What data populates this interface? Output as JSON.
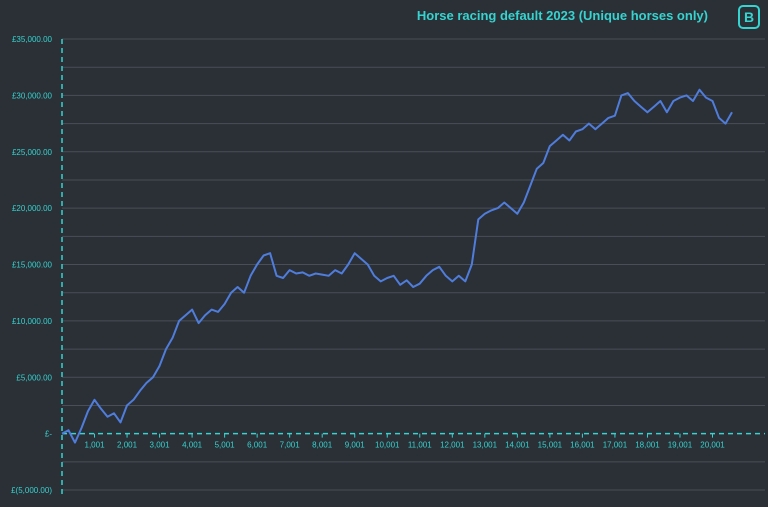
{
  "chart_data": {
    "type": "line",
    "title": "Horse racing default 2023 (Unique horses only)",
    "logo_text": "B",
    "xlabel": "",
    "ylabel": "",
    "ylim": [
      -5000,
      35000
    ],
    "xlim": [
      1,
      21000
    ],
    "y_ticks": [
      35000,
      30000,
      25000,
      20000,
      15000,
      10000,
      5000,
      0,
      -5000
    ],
    "y_tick_labels": [
      "£35,000.00",
      "£30,000.00",
      "£25,000.00",
      "£20,000.00",
      "£15,000.00",
      "£10,000.00",
      "£5,000.00",
      "£-",
      "£(5,000.00)"
    ],
    "x_ticks": [
      1001,
      2001,
      3001,
      4001,
      5001,
      6001,
      7001,
      8001,
      9001,
      10001,
      11001,
      12001,
      13001,
      14001,
      15001,
      16001,
      17001,
      18001,
      19001,
      20001
    ],
    "x_tick_labels": [
      "1,001",
      "2,001",
      "3,001",
      "4,001",
      "5,001",
      "6,001",
      "7,001",
      "8,001",
      "9,001",
      "10,001",
      "11,001",
      "12,001",
      "13,001",
      "14,001",
      "15,001",
      "16,001",
      "17,001",
      "18,001",
      "19,001",
      "20,001"
    ],
    "grid": true,
    "colors": {
      "background": "#2b2f36",
      "grid": "#4a4f57",
      "line": "#4f7ddb",
      "axis": "#35d4d0",
      "text": "#35d4d0"
    },
    "series": [
      {
        "x": [
          1,
          200,
          400,
          600,
          800,
          1000,
          1200,
          1400,
          1600,
          1800,
          2000,
          2200,
          2400,
          2600,
          2800,
          3000,
          3200,
          3400,
          3600,
          3800,
          4000,
          4200,
          4400,
          4600,
          4800,
          5000,
          5200,
          5400,
          5600,
          5800,
          6000,
          6200,
          6400,
          6600,
          6800,
          7000,
          7200,
          7400,
          7600,
          7800,
          8000,
          8200,
          8400,
          8600,
          8800,
          9000,
          9200,
          9400,
          9600,
          9800,
          10000,
          10200,
          10400,
          10600,
          10800,
          11000,
          11200,
          11400,
          11600,
          11800,
          12000,
          12200,
          12400,
          12600,
          12800,
          13000,
          13200,
          13400,
          13600,
          13800,
          14000,
          14200,
          14400,
          14600,
          14800,
          15000,
          15200,
          15400,
          15600,
          15800,
          16000,
          16200,
          16400,
          16600,
          16800,
          17000,
          17200,
          17400,
          17600,
          17800,
          18000,
          18200,
          18400,
          18600,
          18800,
          19000,
          19200,
          19400,
          19600,
          19800,
          20000,
          20200,
          20400,
          20600
        ],
        "values": [
          0,
          300,
          -800,
          500,
          2000,
          3000,
          2200,
          1500,
          1800,
          1000,
          2500,
          3000,
          3800,
          4500,
          5000,
          6000,
          7500,
          8500,
          10000,
          10500,
          11000,
          9800,
          10500,
          11000,
          10800,
          11500,
          12500,
          13000,
          12500,
          14000,
          15000,
          15800,
          16000,
          14000,
          13800,
          14500,
          14200,
          14300,
          14000,
          14200,
          14100,
          14000,
          14500,
          14200,
          15000,
          16000,
          15500,
          15000,
          14000,
          13500,
          13800,
          14000,
          13200,
          13600,
          13000,
          13300,
          14000,
          14500,
          14800,
          14000,
          13500,
          14000,
          13500,
          15000,
          19000,
          19500,
          19800,
          20000,
          20500,
          20000,
          19500,
          20500,
          22000,
          23500,
          24000,
          25500,
          26000,
          26500,
          26000,
          26800,
          27000,
          27500,
          27000,
          27500,
          28000,
          28200,
          30000,
          30200,
          29500,
          29000,
          28500,
          29000,
          29500,
          28500,
          29500,
          29800,
          30000,
          29500,
          30500,
          29800,
          29500,
          28000,
          27500,
          28500
        ]
      }
    ]
  }
}
